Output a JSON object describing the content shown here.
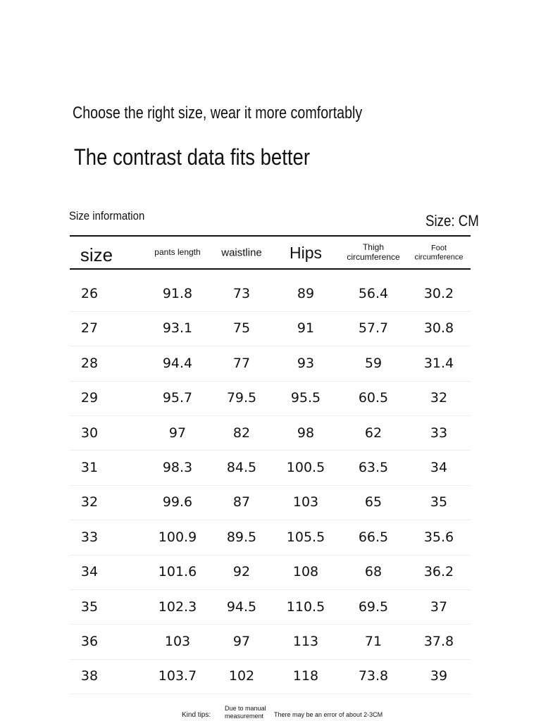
{
  "header": {
    "subtitle": "Choose the right size, wear it more comfortably",
    "title": "The contrast data fits better"
  },
  "table": {
    "caption": "Size information",
    "unit": "Size: CM",
    "columns": [
      [
        "size"
      ],
      [
        "pants length"
      ],
      [
        "waistline"
      ],
      [
        "Hips"
      ],
      [
        "Thigh",
        "circumference"
      ],
      [
        "Foot",
        "circumference"
      ]
    ],
    "rows": [
      [
        "26",
        "91.8",
        "73",
        "89",
        "56.4",
        "30.2"
      ],
      [
        "27",
        "93.1",
        "75",
        "91",
        "57.7",
        "30.8"
      ],
      [
        "28",
        "94.4",
        "77",
        "93",
        "59",
        "31.4"
      ],
      [
        "29",
        "95.7",
        "79.5",
        "95.5",
        "60.5",
        "32"
      ],
      [
        "30",
        "97",
        "82",
        "98",
        "62",
        "33"
      ],
      [
        "31",
        "98.3",
        "84.5",
        "100.5",
        "63.5",
        "34"
      ],
      [
        "32",
        "99.6",
        "87",
        "103",
        "65",
        "35"
      ],
      [
        "33",
        "100.9",
        "89.5",
        "105.5",
        "66.5",
        "35.6"
      ],
      [
        "34",
        "101.6",
        "92",
        "108",
        "68",
        "36.2"
      ],
      [
        "35",
        "102.3",
        "94.5",
        "110.5",
        "69.5",
        "37"
      ],
      [
        "36",
        "103",
        "97",
        "113",
        "71",
        "37.8"
      ],
      [
        "38",
        "103.7",
        "102",
        "118",
        "73.8",
        "39"
      ]
    ]
  },
  "footer": {
    "label": "Kind tips:",
    "note": [
      "Due to manual",
      "measurement"
    ],
    "text": "There may be an error of about 2-3CM"
  }
}
